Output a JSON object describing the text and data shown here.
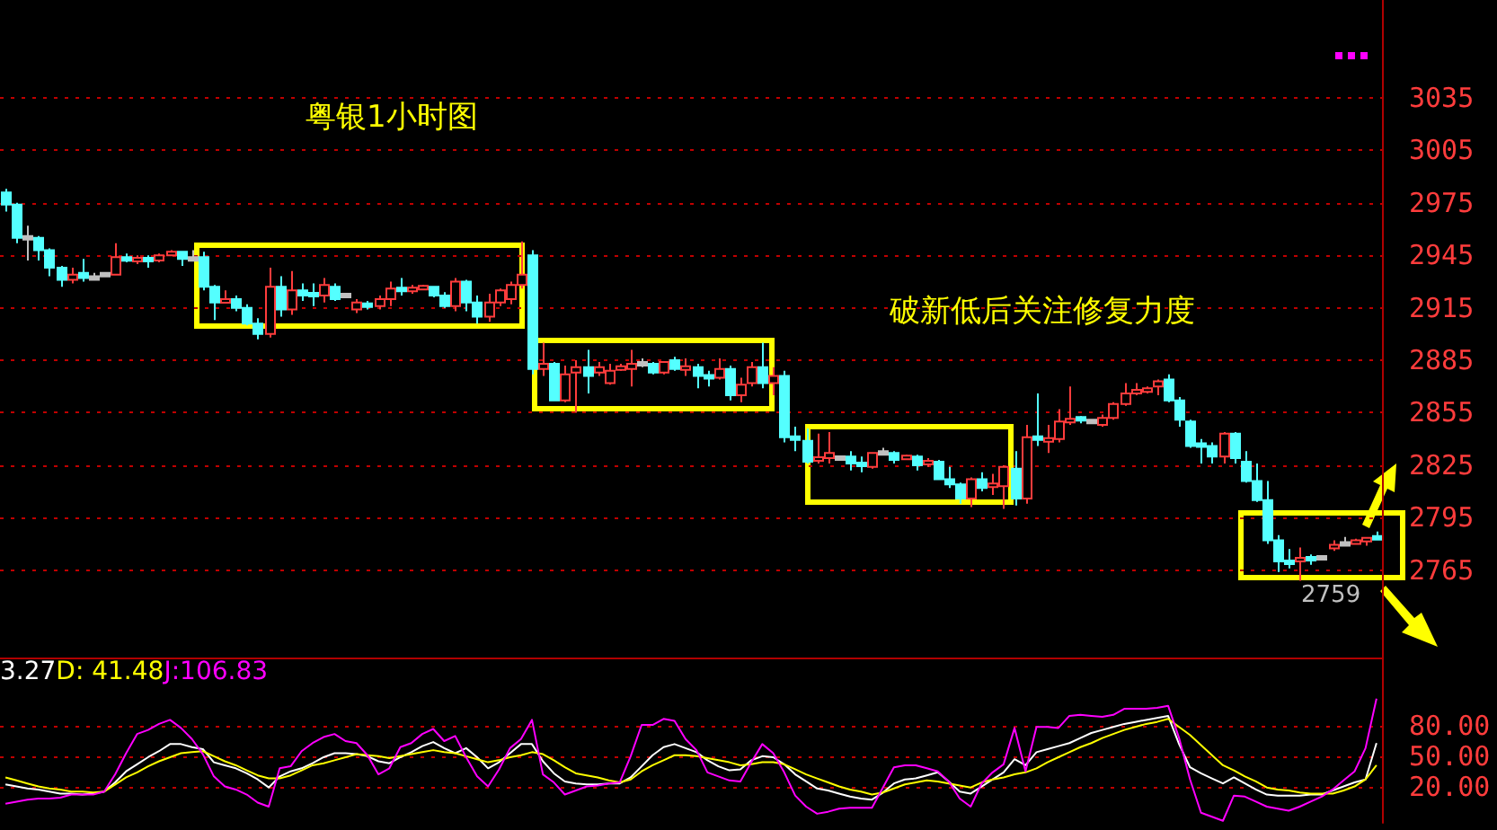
{
  "chart_data": [
    {
      "type": "candlestick",
      "title": "粤银1小时图",
      "annotations": [
        "破新低后关注修复力度",
        "2759"
      ],
      "categories": [
        null,
        null,
        null,
        null,
        null,
        null,
        null,
        null,
        null,
        null,
        null,
        null,
        null,
        null,
        null,
        null,
        null,
        null,
        null,
        null,
        null,
        null,
        null,
        null,
        null,
        null,
        null,
        null,
        null,
        null,
        null,
        null,
        null,
        null,
        null,
        null,
        null,
        null,
        null,
        null,
        null,
        null,
        null,
        null,
        null,
        null,
        null,
        null,
        null,
        null,
        null,
        null,
        null,
        null,
        null,
        null,
        null,
        null,
        null,
        null,
        null,
        null,
        null,
        null,
        null,
        null,
        null,
        null,
        null,
        null,
        null,
        null,
        null,
        null,
        null,
        null,
        null,
        null,
        null,
        null,
        null,
        null,
        null,
        null,
        null,
        null,
        null,
        null,
        null,
        null,
        null,
        null,
        null,
        null,
        null,
        null,
        null,
        null,
        null,
        null,
        null,
        null,
        null,
        null,
        null,
        null,
        null,
        null,
        null,
        null,
        null,
        null,
        null,
        null,
        null,
        null,
        null,
        null,
        null,
        null,
        null,
        null,
        null,
        null,
        null,
        null
      ],
      "colors": [
        "#54ffff",
        "#54ffff",
        "#c0c0c0",
        "#54ffff",
        "#54ffff",
        "#54ffff",
        "#ff3c3c",
        "#54ffff",
        "#c0c0c0",
        "#c0c0c0",
        "#ff3c3c",
        "#54ffff",
        "#ff3c3c",
        "#54ffff",
        "#ff3c3c",
        "#ff3c3c",
        "#54ffff",
        "#c0c0c0",
        "#54ffff",
        "#54ffff",
        "#ff3c3c",
        "#54ffff",
        "#54ffff",
        "#54ffff",
        "#ff3c3c",
        "#54ffff",
        "#ff3c3c",
        "#54ffff",
        "#54ffff",
        "#ff3c3c",
        "#54ffff",
        "#c0c0c0",
        "#ff3c3c",
        "#54ffff",
        "#ff3c3c",
        "#ff3c3c",
        "#54ffff",
        "#ff3c3c",
        "#ff3c3c",
        "#54ffff",
        "#54ffff",
        "#ff3c3c",
        "#54ffff",
        "#54ffff",
        "#ff3c3c",
        "#ff3c3c",
        "#ff3c3c",
        "#ff3c3c",
        "#54ffff",
        "#ff3c3c",
        "#54ffff",
        "#ff3c3c",
        "#ff3c3c",
        "#54ffff",
        "#ff3c3c",
        "#ff3c3c",
        "#ff3c3c",
        "#ff3c3c",
        "#c0c0c0",
        "#54ffff",
        "#ff3c3c",
        "#54ffff",
        "#ff3c3c",
        "#54ffff",
        "#54ffff",
        "#ff3c3c",
        "#54ffff",
        "#ff3c3c",
        "#ff3c3c",
        "#54ffff",
        "#ff3c3c",
        "#54ffff",
        "#54ffff",
        "#54ffff",
        "#ff3c3c",
        "#ff3c3c",
        "#c0c0c0",
        "#54ffff",
        "#54ffff",
        "#ff3c3c",
        "#c0c0c0",
        "#54ffff",
        "#ff3c3c",
        "#54ffff",
        "#ff3c3c",
        "#54ffff",
        "#54ffff",
        "#54ffff",
        "#ff3c3c",
        "#54ffff",
        "#ff3c3c",
        "#ff3c3c",
        "#54ffff",
        "#ff3c3c",
        "#54ffff",
        "#ff3c3c",
        "#ff3c3c",
        "#ff3c3c",
        "#54ffff",
        "#c0c0c0",
        "#ff3c3c",
        "#ff3c3c",
        "#ff3c3c",
        "#ff3c3c",
        "#ff3c3c",
        "#ff3c3c",
        "#54ffff",
        "#54ffff",
        "#54ffff",
        "#54ffff",
        "#54ffff",
        "#ff3c3c",
        "#54ffff",
        "#54ffff",
        "#54ffff",
        "#54ffff",
        "#54ffff",
        "#54ffff",
        "#ff3c3c",
        "#54ffff",
        "#c0c0c0",
        "#ff3c3c",
        "#c0c0c0",
        "#ff3c3c",
        "#ff3c3c",
        "#54ffff"
      ],
      "ohlc": [
        [
          2981,
          2983,
          2970,
          2974
        ],
        [
          2974,
          2975,
          2952,
          2955
        ],
        [
          2955,
          2962,
          2942,
          2955
        ],
        [
          2955,
          2956,
          2942,
          2948
        ],
        [
          2948,
          2949,
          2933,
          2938
        ],
        [
          2938,
          2939,
          2927,
          2931
        ],
        [
          2931,
          2938,
          2929,
          2934
        ],
        [
          2935,
          2943,
          2930,
          2932
        ],
        [
          2932,
          2935,
          2931,
          2932
        ],
        [
          2934,
          2934,
          2934,
          2934
        ],
        [
          2934,
          2952,
          2934,
          2944
        ],
        [
          2944,
          2946,
          2941,
          2942
        ],
        [
          2942,
          2945,
          2940,
          2943
        ],
        [
          2943,
          2945,
          2938,
          2942
        ],
        [
          2942,
          2946,
          2941,
          2945
        ],
        [
          2945,
          2948,
          2945,
          2947
        ],
        [
          2947,
          2947,
          2939,
          2943
        ],
        [
          2943,
          2948,
          2942,
          2943
        ],
        [
          2944,
          2947,
          2925,
          2927
        ],
        [
          2927,
          2928,
          2908,
          2918
        ],
        [
          2918,
          2925,
          2918,
          2920
        ],
        [
          2920,
          2922,
          2913,
          2915
        ],
        [
          2915,
          2917,
          2905,
          2906
        ],
        [
          2906,
          2909,
          2897,
          2900
        ],
        [
          2900,
          2938,
          2898,
          2927
        ],
        [
          2927,
          2933,
          2910,
          2914
        ],
        [
          2914,
          2936,
          2911,
          2925
        ],
        [
          2925,
          2929,
          2919,
          2922
        ],
        [
          2923,
          2929,
          2916,
          2922
        ],
        [
          2922,
          2932,
          2918,
          2928
        ],
        [
          2927,
          2929,
          2919,
          2920
        ],
        [
          2922,
          2922,
          2922,
          2922
        ],
        [
          2914,
          2920,
          2912,
          2918
        ],
        [
          2917,
          2919,
          2914,
          2916
        ],
        [
          2916,
          2922,
          2914,
          2920
        ],
        [
          2920,
          2930,
          2916,
          2926
        ],
        [
          2926,
          2932,
          2922,
          2925
        ],
        [
          2925,
          2928,
          2923,
          2926
        ],
        [
          2926,
          2928,
          2926,
          2927
        ],
        [
          2927,
          2927,
          2921,
          2922
        ],
        [
          2922,
          2924,
          2915,
          2916
        ],
        [
          2916,
          2932,
          2913,
          2930
        ],
        [
          2930,
          2931,
          2913,
          2918
        ],
        [
          2918,
          2922,
          2906,
          2910
        ],
        [
          2910,
          2923,
          2907,
          2918
        ],
        [
          2918,
          2926,
          2916,
          2925
        ],
        [
          2920,
          2930,
          2917,
          2928
        ],
        [
          2928,
          2953,
          2926,
          2934
        ],
        [
          2945,
          2948,
          2877,
          2880
        ],
        [
          2880,
          2895,
          2876,
          2883
        ],
        [
          2883,
          2884,
          2862,
          2862
        ],
        [
          2862,
          2882,
          2861,
          2877
        ],
        [
          2878,
          2885,
          2855,
          2881
        ],
        [
          2881,
          2891,
          2866,
          2876
        ],
        [
          2878,
          2884,
          2876,
          2881
        ],
        [
          2872,
          2883,
          2871,
          2879
        ],
        [
          2880,
          2883,
          2879,
          2881
        ],
        [
          2880,
          2891,
          2870,
          2883
        ],
        [
          2883,
          2886,
          2881,
          2883
        ],
        [
          2883,
          2884,
          2877,
          2878
        ],
        [
          2878,
          2884,
          2877,
          2884
        ],
        [
          2885,
          2887,
          2879,
          2880
        ],
        [
          2880,
          2886,
          2876,
          2881
        ],
        [
          2881,
          2883,
          2869,
          2876
        ],
        [
          2876,
          2879,
          2870,
          2875
        ],
        [
          2875,
          2886,
          2874,
          2880
        ],
        [
          2880,
          2882,
          2862,
          2865
        ],
        [
          2865,
          2875,
          2861,
          2871
        ],
        [
          2872,
          2884,
          2870,
          2881
        ],
        [
          2881,
          2895,
          2869,
          2872
        ],
        [
          2872,
          2881,
          2865,
          2876
        ],
        [
          2876,
          2879,
          2838,
          2841
        ],
        [
          2841,
          2847,
          2833,
          2840
        ],
        [
          2839,
          2846,
          2826,
          2827
        ],
        [
          2828,
          2843,
          2826,
          2829
        ],
        [
          2829,
          2844,
          2826,
          2832
        ],
        [
          2829,
          2829,
          2829,
          2829
        ],
        [
          2830,
          2833,
          2822,
          2826
        ],
        [
          2826,
          2830,
          2821,
          2825
        ],
        [
          2824,
          2832,
          2823,
          2832
        ],
        [
          2832,
          2835,
          2831,
          2832
        ],
        [
          2832,
          2833,
          2826,
          2828
        ],
        [
          2829,
          2831,
          2828,
          2830
        ],
        [
          2830,
          2831,
          2822,
          2825
        ],
        [
          2826,
          2829,
          2824,
          2827
        ],
        [
          2827,
          2828,
          2817,
          2817
        ],
        [
          2817,
          2824,
          2812,
          2814
        ],
        [
          2814,
          2815,
          2803,
          2806
        ],
        [
          2806,
          2818,
          2801,
          2817
        ],
        [
          2817,
          2821,
          2810,
          2812
        ],
        [
          2813,
          2820,
          2808,
          2814
        ],
        [
          2813,
          2825,
          2800,
          2824
        ],
        [
          2823,
          2833,
          2802,
          2806
        ],
        [
          2806,
          2848,
          2803,
          2841
        ],
        [
          2841,
          2866,
          2836,
          2840
        ],
        [
          2839,
          2848,
          2832,
          2840
        ],
        [
          2840,
          2857,
          2838,
          2850
        ],
        [
          2850,
          2870,
          2848,
          2851
        ],
        [
          2852,
          2853,
          2849,
          2851
        ],
        [
          2850,
          2850,
          2850,
          2850
        ],
        [
          2848,
          2854,
          2847,
          2852
        ],
        [
          2852,
          2861,
          2851,
          2860
        ],
        [
          2860,
          2872,
          2859,
          2866
        ],
        [
          2866,
          2872,
          2865,
          2868
        ],
        [
          2867,
          2870,
          2866,
          2869
        ],
        [
          2870,
          2874,
          2865,
          2873
        ],
        [
          2874,
          2877,
          2861,
          2862
        ],
        [
          2862,
          2864,
          2847,
          2851
        ],
        [
          2850,
          2851,
          2835,
          2836
        ],
        [
          2837,
          2840,
          2826,
          2836
        ],
        [
          2836,
          2838,
          2826,
          2830
        ],
        [
          2830,
          2844,
          2826,
          2843
        ],
        [
          2843,
          2844,
          2826,
          2829
        ],
        [
          2827,
          2833,
          2815,
          2816
        ],
        [
          2816,
          2826,
          2804,
          2805
        ],
        [
          2805,
          2816,
          2780,
          2782
        ],
        [
          2782,
          2785,
          2764,
          2770
        ],
        [
          2770,
          2777,
          2766,
          2769
        ],
        [
          2770,
          2778,
          2759,
          2772
        ],
        [
          2772,
          2774,
          2768,
          2771
        ],
        [
          2772,
          2772,
          2772,
          2772
        ],
        [
          2778,
          2782,
          2776,
          2779
        ],
        [
          2780,
          2784,
          2780,
          2780
        ],
        [
          2780,
          2783,
          2780,
          2782
        ],
        [
          2782,
          2783,
          2779,
          2783
        ],
        [
          2784,
          2787,
          2783,
          2783
        ]
      ],
      "ylim": [
        2714,
        3091
      ],
      "yticks": [
        2765,
        2795,
        2825,
        2855,
        2885,
        2915,
        2945,
        2975,
        3005,
        3035
      ],
      "grid": "y",
      "tick_labels": "y"
    },
    {
      "type": "line",
      "annotations": [
        "3.27",
        "D: 41.48",
        "J:106.83"
      ],
      "categories": [
        null,
        null,
        null,
        null,
        null,
        null,
        null,
        null,
        null,
        null,
        null,
        null,
        null,
        null,
        null,
        null,
        null,
        null,
        null,
        null,
        null,
        null,
        null,
        null,
        null,
        null,
        null,
        null,
        null,
        null,
        null,
        null,
        null,
        null,
        null,
        null,
        null,
        null,
        null,
        null,
        null,
        null,
        null,
        null,
        null,
        null,
        null,
        null,
        null,
        null,
        null,
        null,
        null,
        null,
        null,
        null,
        null,
        null,
        null,
        null,
        null,
        null,
        null,
        null,
        null,
        null,
        null,
        null,
        null,
        null,
        null,
        null,
        null,
        null,
        null,
        null,
        null,
        null,
        null,
        null,
        null,
        null,
        null,
        null,
        null,
        null,
        null,
        null,
        null,
        null,
        null,
        null,
        null,
        null,
        null,
        null,
        null,
        null,
        null,
        null,
        null,
        null,
        null,
        null,
        null,
        null,
        null,
        null,
        null,
        null,
        null,
        null,
        null,
        null,
        null,
        null,
        null,
        null,
        null,
        null,
        null,
        null,
        null,
        null,
        null,
        null
      ],
      "ylim": [
        -16,
        146
      ],
      "yticks": [
        {
          "value": 20,
          "label": "20.00"
        },
        {
          "value": 50,
          "label": "50.00"
        },
        {
          "value": 80,
          "label": "80.00"
        }
      ],
      "grid": "y",
      "tick_labels": "y",
      "series": [
        {
          "color": "#ffffff",
          "values": [
            22,
            20,
            18,
            17,
            15,
            13,
            13,
            12,
            13,
            15,
            24,
            35,
            42,
            49,
            55,
            62,
            62,
            59,
            57,
            44,
            41,
            38,
            33,
            27,
            19,
            30,
            35,
            38,
            43,
            49,
            53,
            53,
            52,
            50,
            45,
            43,
            49,
            54,
            60,
            64,
            58,
            53,
            58,
            49,
            38,
            44,
            53,
            62,
            62,
            45,
            33,
            25,
            23,
            22,
            22,
            23,
            23,
            29,
            40,
            51,
            59,
            62,
            58,
            54,
            46,
            40,
            36,
            37,
            46,
            50,
            49,
            42,
            32,
            25,
            18,
            16,
            13,
            10,
            8,
            7,
            14,
            23,
            27,
            28,
            31,
            34,
            25,
            15,
            13,
            20,
            27,
            34,
            47,
            41,
            54,
            57,
            60,
            63,
            68,
            73,
            76,
            79,
            82,
            84,
            86,
            88,
            90,
            62,
            39,
            33,
            28,
            23,
            29,
            23,
            17,
            12,
            11,
            11,
            11,
            12,
            12,
            16,
            20,
            24,
            27,
            63
          ]
        },
        {
          "color": "#ffff00",
          "values": [
            29,
            26,
            23,
            20,
            18,
            17,
            15,
            15,
            14,
            15,
            22,
            29,
            34,
            40,
            45,
            49,
            53,
            54,
            55,
            50,
            45,
            41,
            36,
            31,
            28,
            28,
            31,
            36,
            41,
            43,
            46,
            49,
            52,
            51,
            50,
            48,
            50,
            52,
            54,
            56,
            54,
            53,
            50,
            47,
            44,
            46,
            49,
            51,
            54,
            52,
            46,
            39,
            33,
            31,
            29,
            26,
            24,
            27,
            35,
            41,
            46,
            51,
            51,
            50,
            48,
            46,
            44,
            41,
            42,
            44,
            44,
            42,
            37,
            32,
            28,
            24,
            20,
            17,
            15,
            12,
            14,
            18,
            22,
            24,
            26,
            25,
            23,
            21,
            19,
            24,
            27,
            29,
            32,
            34,
            38,
            44,
            49,
            54,
            59,
            63,
            68,
            72,
            76,
            79,
            82,
            84,
            87,
            79,
            71,
            61,
            51,
            41,
            36,
            30,
            25,
            19,
            17,
            16,
            14,
            13,
            13,
            13,
            16,
            20,
            27,
            41
          ]
        },
        {
          "color": "#ff00ff",
          "values": [
            3,
            5,
            7,
            8,
            8,
            9,
            12,
            12,
            12,
            15,
            32,
            53,
            72,
            76,
            82,
            86,
            78,
            67,
            52,
            30,
            20,
            17,
            12,
            4,
            0,
            38,
            40,
            55,
            63,
            69,
            72,
            65,
            63,
            51,
            32,
            38,
            59,
            63,
            72,
            77,
            65,
            70,
            49,
            30,
            20,
            37,
            58,
            67,
            86,
            32,
            24,
            12,
            16,
            20,
            21,
            23,
            24,
            50,
            81,
            81,
            87,
            85,
            67,
            56,
            34,
            30,
            26,
            25,
            44,
            62,
            53,
            34,
            11,
            0,
            -7,
            -5,
            -2,
            -1,
            -1,
            -1,
            19,
            39,
            41,
            41,
            38,
            35,
            25,
            8,
            0,
            23,
            34,
            42,
            78,
            35,
            79,
            79,
            78,
            90,
            91,
            90,
            89,
            91,
            97,
            97,
            97,
            98,
            100,
            68,
            27,
            -6,
            -10,
            -14,
            11,
            10,
            5,
            0,
            -2,
            -4,
            0,
            5,
            10,
            17,
            26,
            35,
            58,
            107
          ]
        }
      ]
    }
  ]
}
